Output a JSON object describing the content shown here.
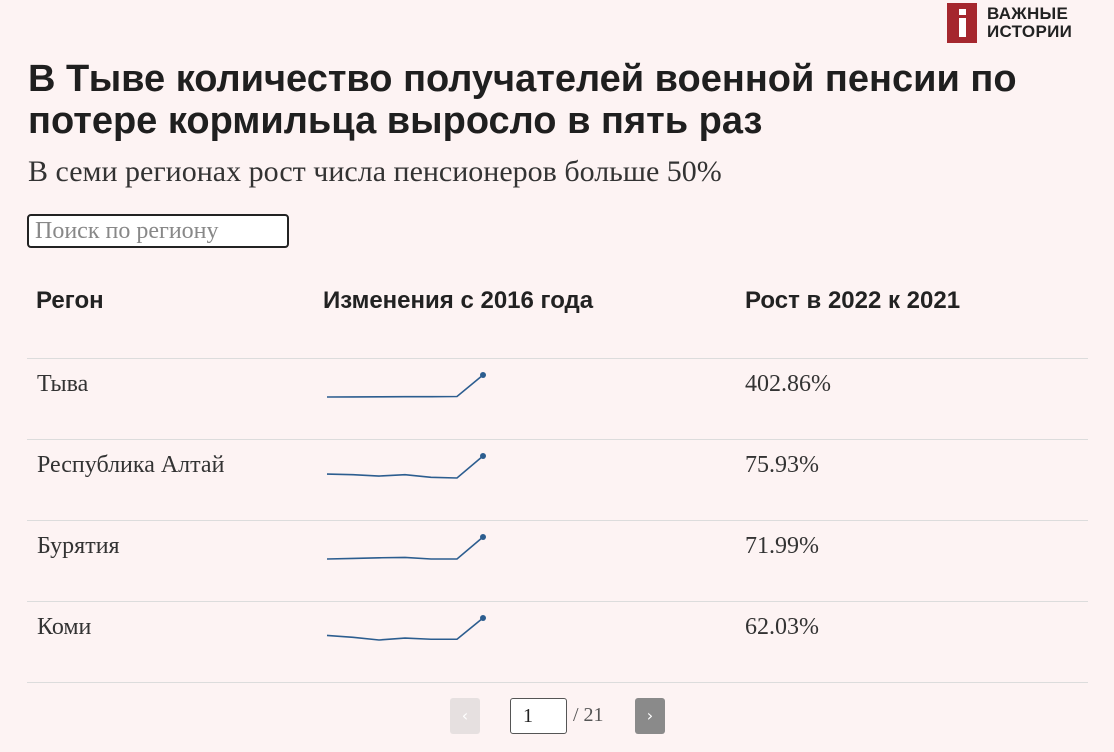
{
  "brand": {
    "line1": "ВАЖНЫЕ",
    "line2": "ИСТОРИИ",
    "accent_color": "#a5272e"
  },
  "title": "В Тыве количество получателей военной пенсии по потере кормильца выросло в пять раз",
  "subtitle": "В семи регионах рост числа пенсионеров больше 50%",
  "search": {
    "placeholder": "Поиск по региону",
    "value": ""
  },
  "table": {
    "headers": {
      "region": "Регон",
      "change": "Изменения с 2016 года",
      "growth": "Рост в 2022 к 2021"
    },
    "rows": [
      {
        "region": "Тыва",
        "growth": "402.86%",
        "sparkline": [
          1.0,
          1.02,
          1.03,
          1.06,
          1.06,
          1.1,
          5.5
        ]
      },
      {
        "region": "Республика Алтай",
        "growth": "75.93%",
        "sparkline": [
          1.0,
          0.98,
          0.94,
          0.98,
          0.9,
          0.88,
          1.55
        ]
      },
      {
        "region": "Бурятия",
        "growth": "71.99%",
        "sparkline": [
          1.0,
          1.02,
          1.04,
          1.05,
          1.0,
          1.0,
          1.72
        ]
      },
      {
        "region": "Коми",
        "growth": "62.03%",
        "sparkline": [
          1.0,
          0.95,
          0.88,
          0.93,
          0.9,
          0.9,
          1.46
        ]
      }
    ],
    "spark_color": "#2c5d8f"
  },
  "pagination": {
    "prev_label": "‹",
    "next_label": "›",
    "current_page": "1",
    "total": "/ 21"
  }
}
